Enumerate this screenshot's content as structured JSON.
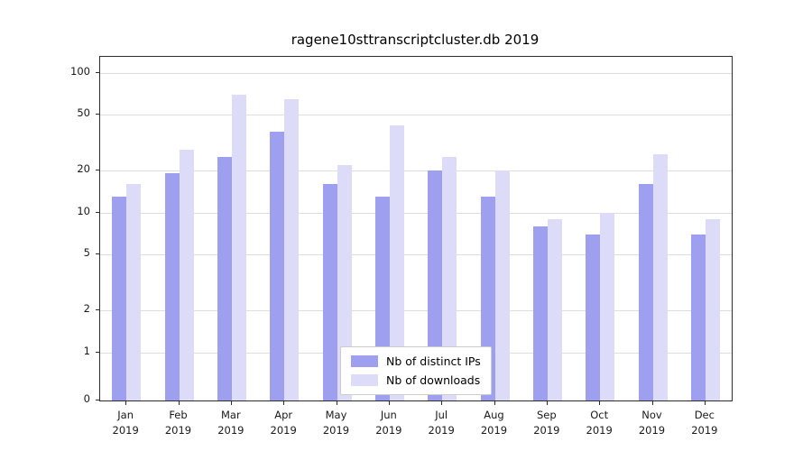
{
  "chart_data": {
    "type": "bar",
    "title": "ragene10sttranscriptcluster.db 2019",
    "categories": [
      "Jan",
      "Feb",
      "Mar",
      "Apr",
      "May",
      "Jun",
      "Jul",
      "Aug",
      "Sep",
      "Oct",
      "Nov",
      "Dec"
    ],
    "year": "2019",
    "series": [
      {
        "name": "Nb of distinct IPs",
        "color": "#9f9ff0",
        "values": [
          13,
          19,
          25,
          38,
          16,
          13,
          20,
          13,
          8,
          7,
          16,
          7
        ]
      },
      {
        "name": "Nb of downloads",
        "color": "#dcdcf8",
        "values": [
          16,
          28,
          70,
          65,
          22,
          42,
          25,
          20,
          9,
          10,
          26,
          9
        ]
      }
    ],
    "yticks": [
      0,
      1,
      2,
      5,
      10,
      20,
      50,
      100
    ],
    "ylim": [
      0,
      130
    ],
    "scale": "symlog",
    "grid": "horizontal",
    "legend_position": "bottom-center",
    "colors": {
      "grid": "#dddddd",
      "spine": "#2b2b2b",
      "legend_border": "#cccccc"
    }
  }
}
